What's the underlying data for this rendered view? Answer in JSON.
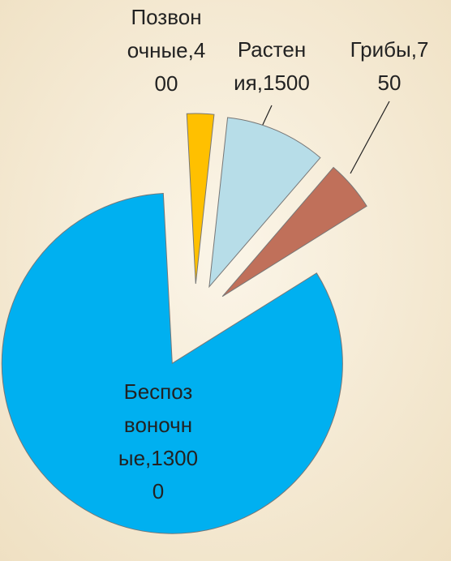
{
  "chart_data": {
    "type": "pie",
    "categories": [
      "Позвоночные",
      "Растения",
      "Грибы",
      "Беспозвоночные"
    ],
    "values": [
      400,
      1500,
      750,
      13000
    ],
    "value_labels": [
      "Позвоночные,400",
      "Растения,1500",
      "Грибы,750",
      "Беспозвоночные,13000"
    ],
    "colors": [
      "#ffc000",
      "#b7dde8",
      "#c0705a",
      "#00b0f0"
    ]
  }
}
